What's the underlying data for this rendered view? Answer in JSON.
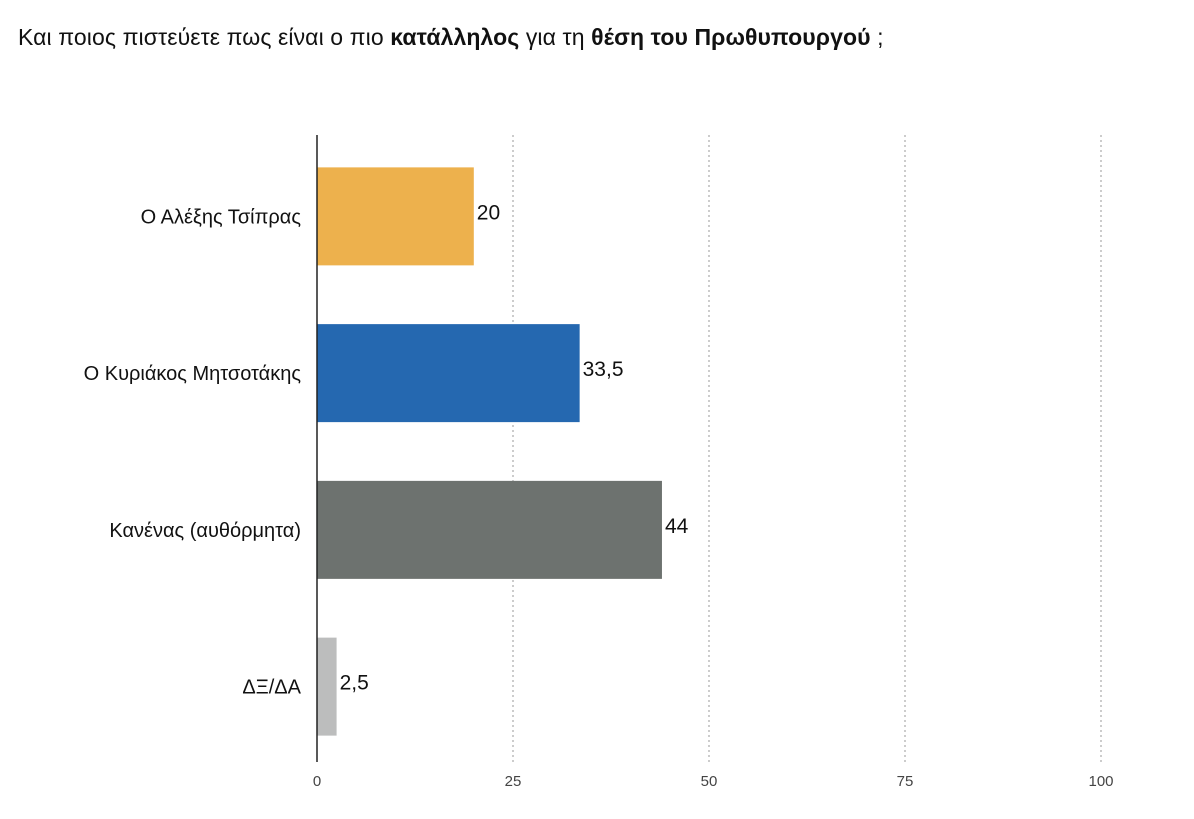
{
  "title": {
    "part1": "Και ποιος πιστεύετε πως είναι ο πιο ",
    "bold1": "κατάλληλος",
    "part2": " για τη ",
    "bold2": "θέση του Πρωθυπουργού",
    "part3": " ;"
  },
  "chart_data": {
    "type": "bar",
    "orientation": "horizontal",
    "categories": [
      "Ο Αλέξης Τσίπρας",
      "Ο Κυριάκος Μητσοτάκης",
      "Κανένας (αυθόρμητα)",
      "ΔΞ/ΔΑ"
    ],
    "values": [
      20,
      33.5,
      44,
      2.5
    ],
    "value_labels": [
      "20",
      "33,5",
      "44",
      "2,5"
    ],
    "colors": [
      "#EDB14D",
      "#2568B0",
      "#6D726F",
      "#BCBDBD"
    ],
    "xlim": [
      0,
      100
    ],
    "xticks": [
      0,
      25,
      50,
      75,
      100
    ],
    "grid": true,
    "grid_style": "dotted vertical",
    "xlabel": "",
    "ylabel": ""
  }
}
